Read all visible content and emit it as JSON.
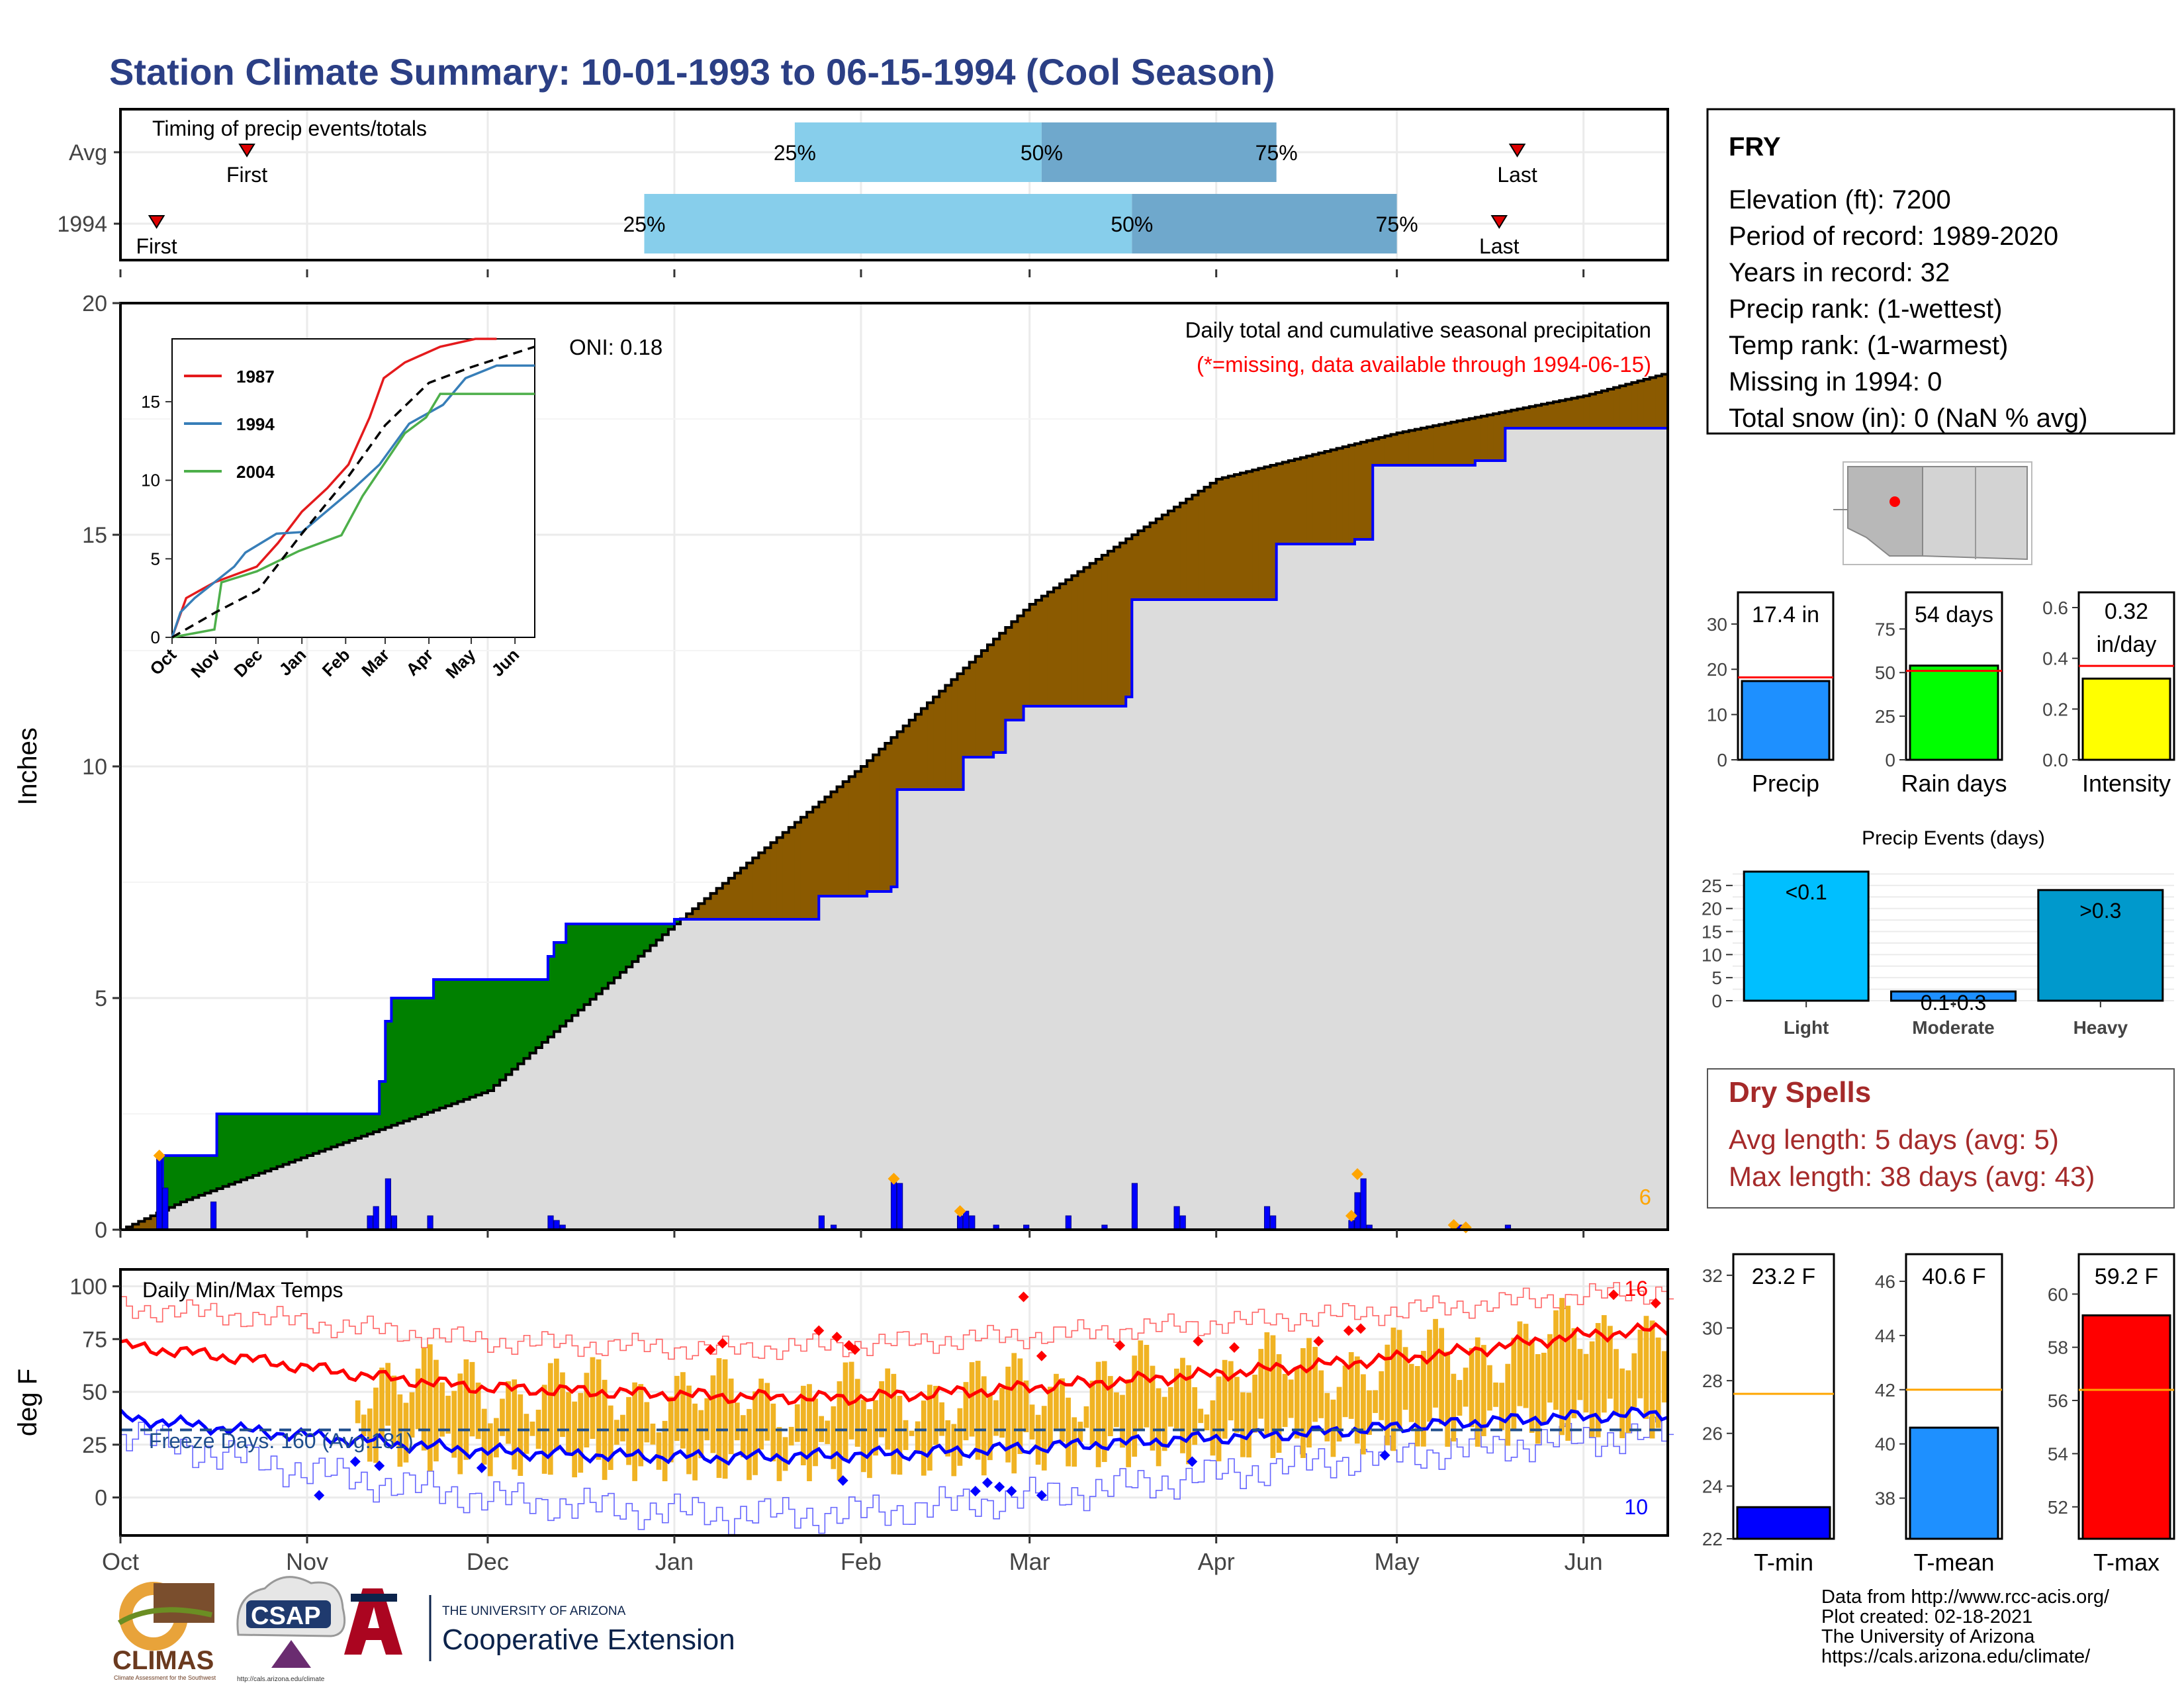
{
  "page": {
    "title": "Station Climate Summary: 10-01-1993 to 06-15-1994 (Cool Season)"
  },
  "timing_panel": {
    "label": "Timing of precip events/totals",
    "rows": [
      {
        "name": "Avg",
        "first_label": "First",
        "last_label": "Last",
        "p25": "25%",
        "p50": "50%",
        "p75": "75%",
        "first_day": 21,
        "p25_day": 112,
        "p50_day": 153,
        "p75_day": 192,
        "last_day": 232
      },
      {
        "name": "1994",
        "first_label": "First",
        "last_label": "Last",
        "p25": "25%",
        "p50": "50%",
        "p75": "75%",
        "first_day": 6,
        "p25_day": 87,
        "p50_day": 168,
        "p75_day": 212,
        "last_day": 229
      }
    ]
  },
  "chart_data": [
    {
      "type": "area",
      "name": "Daily total and cumulative seasonal precipitation",
      "title": "Daily total and cumulative seasonal precipitation",
      "subtitle": "(*=missing, data available through 1994-06-15)",
      "ylabel": "Inches",
      "ylim": [
        0,
        20
      ],
      "yticks": [
        0,
        5,
        10,
        15,
        20
      ],
      "oni": "ONI: 0.18",
      "corner_count": "6",
      "avg_cumulative": [
        [
          0,
          0
        ],
        [
          10,
          0.6
        ],
        [
          31,
          1.6
        ],
        [
          61,
          3.0
        ],
        [
          92,
          6.6
        ],
        [
          123,
          10.0
        ],
        [
          151,
          13.5
        ],
        [
          168,
          15.0
        ],
        [
          182,
          16.2
        ],
        [
          212,
          17.2
        ],
        [
          243,
          18.0
        ],
        [
          257,
          18.5
        ]
      ],
      "year_cumulative": [
        [
          0,
          0
        ],
        [
          6,
          0
        ],
        [
          7,
          1.6
        ],
        [
          15,
          1.6
        ],
        [
          16,
          2.5
        ],
        [
          42,
          2.5
        ],
        [
          43,
          3.2
        ],
        [
          44,
          4.5
        ],
        [
          45,
          5.0
        ],
        [
          50,
          5.0
        ],
        [
          52,
          5.4
        ],
        [
          70,
          5.4
        ],
        [
          71,
          5.9
        ],
        [
          72,
          6.2
        ],
        [
          74,
          6.6
        ],
        [
          92,
          6.7
        ],
        [
          115,
          6.7
        ],
        [
          116,
          7.2
        ],
        [
          124,
          7.3
        ],
        [
          128,
          7.4
        ],
        [
          129,
          9.5
        ],
        [
          140,
          10.2
        ],
        [
          145,
          10.3
        ],
        [
          147,
          11.0
        ],
        [
          150,
          11.3
        ],
        [
          167,
          11.5
        ],
        [
          168,
          13.6
        ],
        [
          191,
          13.6
        ],
        [
          192,
          14.8
        ],
        [
          205,
          14.9
        ],
        [
          208,
          16.5
        ],
        [
          225,
          16.6
        ],
        [
          230,
          17.3
        ],
        [
          257,
          17.3
        ]
      ],
      "daily_precip": [
        [
          6,
          1.6
        ],
        [
          7,
          0.9
        ],
        [
          15,
          0.6
        ],
        [
          41,
          0.3
        ],
        [
          42,
          0.5
        ],
        [
          44,
          1.1
        ],
        [
          45,
          0.3
        ],
        [
          51,
          0.3
        ],
        [
          71,
          0.3
        ],
        [
          72,
          0.2
        ],
        [
          73,
          0.1
        ],
        [
          116,
          0.3
        ],
        [
          118,
          0.1
        ],
        [
          128,
          1.1
        ],
        [
          129,
          1.0
        ],
        [
          139,
          0.3
        ],
        [
          140,
          0.4
        ],
        [
          141,
          0.3
        ],
        [
          145,
          0.1
        ],
        [
          150,
          0.1
        ],
        [
          157,
          0.3
        ],
        [
          163,
          0.1
        ],
        [
          168,
          1.0
        ],
        [
          175,
          0.5
        ],
        [
          176,
          0.3
        ],
        [
          190,
          0.5
        ],
        [
          191,
          0.3
        ],
        [
          204,
          0.2
        ],
        [
          205,
          0.8
        ],
        [
          206,
          1.1
        ],
        [
          207,
          0.1
        ],
        [
          221,
          0.1
        ],
        [
          222,
          0.1
        ],
        [
          230,
          0.1
        ]
      ],
      "highlights": [
        [
          6,
          1.6
        ],
        [
          128,
          1.1
        ],
        [
          139,
          0.4
        ],
        [
          205,
          1.2
        ],
        [
          204,
          0.3
        ],
        [
          221,
          0.1
        ],
        [
          223,
          0.05
        ]
      ],
      "xticks": [
        "Oct",
        "Nov",
        "Dec",
        "Jan",
        "Feb",
        "Mar",
        "Apr",
        "May",
        "Jun"
      ],
      "xtick_days": [
        0,
        31,
        61,
        92,
        123,
        151,
        182,
        212,
        243
      ]
    },
    {
      "type": "line",
      "name": "Cumulative precipitation comparison",
      "ylim": [
        0,
        19
      ],
      "yticks": [
        0,
        5,
        10,
        15
      ],
      "xticks": [
        "Oct",
        "Nov",
        "Dec",
        "Jan",
        "Feb",
        "Mar",
        "Apr",
        "May",
        "Jun"
      ],
      "series": [
        {
          "name": "1987",
          "color": "#e41a1c",
          "values": [
            [
              0,
              0
            ],
            [
              10,
              2.5
            ],
            [
              30,
              3.5
            ],
            [
              60,
              4.5
            ],
            [
              75,
              6.0
            ],
            [
              92,
              8.0
            ],
            [
              110,
              9.5
            ],
            [
              125,
              11.0
            ],
            [
              140,
              14.0
            ],
            [
              150,
              16.5
            ],
            [
              165,
              17.5
            ],
            [
              190,
              18.5
            ],
            [
              215,
              19.0
            ],
            [
              230,
              19.0
            ]
          ]
        },
        {
          "name": "1994",
          "color": "#377eb8",
          "values": [
            [
              0,
              0
            ],
            [
              6,
              1.6
            ],
            [
              16,
              2.5
            ],
            [
              44,
              4.5
            ],
            [
              52,
              5.4
            ],
            [
              74,
              6.6
            ],
            [
              92,
              6.7
            ],
            [
              129,
              9.5
            ],
            [
              147,
              11.0
            ],
            [
              168,
              13.6
            ],
            [
              192,
              14.8
            ],
            [
              208,
              16.5
            ],
            [
              230,
              17.3
            ],
            [
              257,
              17.3
            ]
          ]
        },
        {
          "name": "2004",
          "color": "#4daf4a",
          "values": [
            [
              0,
              0
            ],
            [
              30,
              0.5
            ],
            [
              35,
              3.5
            ],
            [
              60,
              4.2
            ],
            [
              90,
              5.5
            ],
            [
              120,
              6.5
            ],
            [
              135,
              9.0
            ],
            [
              150,
              11.0
            ],
            [
              165,
              13.0
            ],
            [
              180,
              14.0
            ],
            [
              190,
              15.5
            ],
            [
              200,
              15.5
            ],
            [
              257,
              15.5
            ]
          ]
        },
        {
          "name": "",
          "color": "#000000",
          "dash": true,
          "values": [
            [
              0,
              0
            ],
            [
              31,
              1.6
            ],
            [
              61,
              3.0
            ],
            [
              92,
              6.6
            ],
            [
              123,
              10.0
            ],
            [
              151,
              13.5
            ],
            [
              182,
              16.2
            ],
            [
              212,
              17.2
            ],
            [
              257,
              18.5
            ]
          ]
        }
      ]
    },
    {
      "type": "line",
      "name": "Daily Min/Max Temps",
      "title": "Daily Min/Max Temps",
      "ylabel": "deg F",
      "ylim": [
        -18,
        108
      ],
      "yticks": [
        0,
        25,
        50,
        75,
        100
      ],
      "freeze_text": "Freeze Days: 160 (Avg:181)",
      "freeze_line": 32,
      "count_high": "16",
      "count_low": "10",
      "avg_max": [
        [
          0,
          72
        ],
        [
          20,
          66
        ],
        [
          40,
          58
        ],
        [
          60,
          52
        ],
        [
          80,
          50
        ],
        [
          100,
          48
        ],
        [
          120,
          47
        ],
        [
          140,
          50
        ],
        [
          160,
          54
        ],
        [
          180,
          58
        ],
        [
          200,
          63
        ],
        [
          220,
          68
        ],
        [
          240,
          76
        ],
        [
          257,
          80
        ]
      ],
      "avg_min": [
        [
          0,
          38
        ],
        [
          20,
          32
        ],
        [
          40,
          27
        ],
        [
          60,
          22
        ],
        [
          80,
          20
        ],
        [
          100,
          19
        ],
        [
          120,
          20
        ],
        [
          140,
          22
        ],
        [
          160,
          25
        ],
        [
          180,
          28
        ],
        [
          200,
          31
        ],
        [
          220,
          35
        ],
        [
          240,
          38
        ],
        [
          257,
          40
        ]
      ],
      "rec_max": [
        [
          0,
          90
        ],
        [
          20,
          86
        ],
        [
          40,
          80
        ],
        [
          60,
          74
        ],
        [
          80,
          72
        ],
        [
          100,
          70
        ],
        [
          120,
          72
        ],
        [
          140,
          75
        ],
        [
          160,
          78
        ],
        [
          180,
          82
        ],
        [
          200,
          86
        ],
        [
          220,
          90
        ],
        [
          240,
          95
        ],
        [
          257,
          98
        ]
      ],
      "rec_min": [
        [
          0,
          30
        ],
        [
          20,
          18
        ],
        [
          40,
          8
        ],
        [
          60,
          0
        ],
        [
          80,
          -5
        ],
        [
          100,
          -8
        ],
        [
          120,
          -8
        ],
        [
          140,
          -3
        ],
        [
          160,
          3
        ],
        [
          180,
          10
        ],
        [
          200,
          17
        ],
        [
          220,
          22
        ],
        [
          240,
          27
        ],
        [
          257,
          30
        ]
      ],
      "bars_range": [
        39,
        257
      ],
      "xticks": [
        "Oct",
        "Nov",
        "Dec",
        "Jan",
        "Feb",
        "Mar",
        "Apr",
        "May",
        "Jun"
      ]
    },
    {
      "type": "bar",
      "name": "Precip",
      "categories": [
        "Precip"
      ],
      "values": [
        17.4
      ],
      "label": "17.4 in",
      "ylim": [
        0,
        37
      ],
      "yticks": [
        0,
        10,
        20,
        30
      ],
      "avg": 18.2,
      "color": "#1e90ff"
    },
    {
      "type": "bar",
      "name": "Rain days",
      "categories": [
        "Rain days"
      ],
      "values": [
        54
      ],
      "label": "54 days",
      "ylim": [
        0,
        96
      ],
      "yticks": [
        0,
        25,
        50,
        75
      ],
      "avg": 51,
      "color": "#00ff00"
    },
    {
      "type": "bar",
      "name": "Intensity",
      "categories": [
        "Intensity"
      ],
      "values": [
        0.32
      ],
      "label": "0.32 in/day",
      "label_line1": "0.32",
      "label_line2": "in/day",
      "ylim": [
        0,
        0.66
      ],
      "yticks": [
        "0.0",
        "0.2",
        "0.4",
        "0.6"
      ],
      "ytick_values": [
        0,
        0.2,
        0.4,
        0.6
      ],
      "avg": 0.37,
      "color": "#ffff00"
    },
    {
      "type": "bar",
      "name": "Precip Events (days)",
      "title": "Precip Events (days)",
      "categories": [
        "Light",
        "Moderate",
        "Heavy"
      ],
      "values": [
        28,
        2,
        24
      ],
      "labels": [
        "<0.1",
        "0.1-0.3",
        ">0.3"
      ],
      "colors": [
        "#00bfff",
        "#1e90ff",
        "#0099cc"
      ],
      "ylim": [
        0,
        29
      ],
      "yticks": [
        0,
        5,
        10,
        15,
        20,
        25
      ]
    },
    {
      "type": "bar",
      "name": "T-min",
      "categories": [
        "T-min"
      ],
      "values": [
        23.2
      ],
      "label": "23.2 F",
      "ylim": [
        22,
        32.8
      ],
      "yticks": [
        22,
        24,
        26,
        28,
        30,
        32
      ],
      "avg": 27.5,
      "color": "#0000ff"
    },
    {
      "type": "bar",
      "name": "T-mean",
      "categories": [
        "T-mean"
      ],
      "values": [
        40.6
      ],
      "label": "40.6 F",
      "ylim": [
        36.5,
        47
      ],
      "yticks": [
        38,
        40,
        42,
        44,
        46
      ],
      "avg": 42,
      "color": "#1e90ff"
    },
    {
      "type": "bar",
      "name": "T-max",
      "categories": [
        "T-max"
      ],
      "values": [
        59.2
      ],
      "label": "59.2 F",
      "ylim": [
        50.8,
        61.5
      ],
      "yticks": [
        52,
        54,
        56,
        58,
        60
      ],
      "avg": 56.4,
      "color": "#ff0000"
    }
  ],
  "station": {
    "name": "FRY",
    "lines": [
      "Elevation (ft): 7200",
      "Period of record: 1989-2020",
      "Years in record: 32",
      "Precip rank:  (1-wettest)",
      "Temp rank:  (1-warmest)",
      "Missing in 1994: 0",
      "Total snow (in): 0 (NaN % avg)"
    ]
  },
  "dry_spells": {
    "title": "Dry Spells",
    "avg_length": "Avg length: 5 days (avg: 5)",
    "max_length": "Max length: 38 days (avg: 43)"
  },
  "footer": {
    "credits": [
      "Data from http://www.rcc-acis.org/",
      "Plot created: 02-18-2021",
      "The University of Arizona",
      "https://cals.arizona.edu/climate/"
    ],
    "logos": {
      "climas": "CLIMAS",
      "climas_sub": "Climate Assessment for the Southwest",
      "csap": "CSAP",
      "csap_url": "http://cals.arizona.edu/climate",
      "ua_small": "THE UNIVERSITY OF ARIZONA",
      "ua_big": "Cooperative Extension"
    }
  },
  "colors": {
    "title": "#2b3f85",
    "above_avg": "#8b5a00",
    "below_avg": "#008000",
    "cumulative_line": "#0000ff",
    "avg_area": "#dcdcdc",
    "temp_bar": "#f0b323",
    "q1": "#87ceeb",
    "q2": "#6fa8cc",
    "dry_spells": "#a52a2a"
  }
}
